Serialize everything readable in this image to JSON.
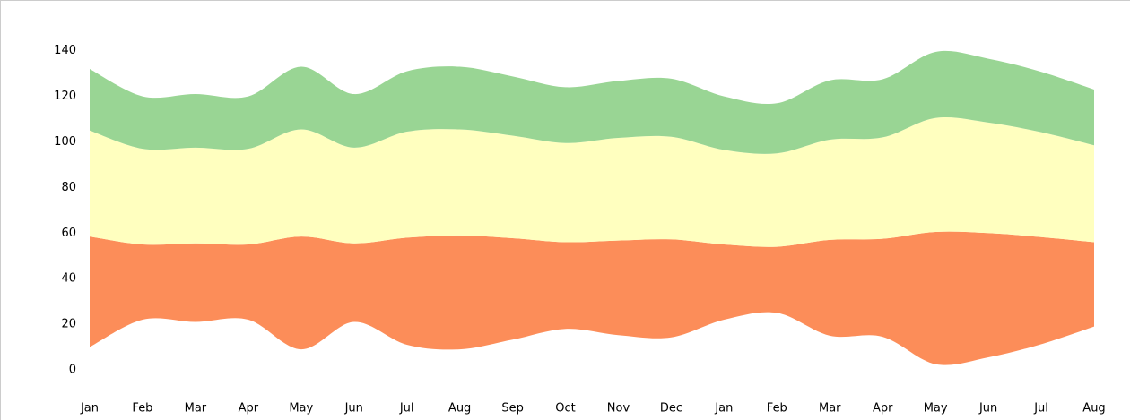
{
  "chart_data": {
    "type": "streamgraph",
    "offset": "silhouette",
    "categories": [
      "Jan",
      "Feb",
      "Mar",
      "Apr",
      "May",
      "Jun",
      "Jul",
      "Aug",
      "Sep",
      "Oct",
      "Nov",
      "Dec",
      "Jan",
      "Feb",
      "Mar",
      "Apr",
      "May",
      "Jun",
      "Jul",
      "Aug"
    ],
    "series": [
      {
        "color": "#fc8d59",
        "values": [
          48.5,
          33,
          34.5,
          33,
          49.5,
          34.5,
          47,
          50,
          44.5,
          38,
          41.5,
          43,
          33,
          29,
          42,
          43,
          58,
          54.5,
          47,
          37
        ]
      },
      {
        "color": "#ffffbf",
        "values": [
          46.5,
          42,
          42,
          42,
          47,
          42,
          46.5,
          46.5,
          45,
          43.5,
          45,
          45,
          41.5,
          41,
          44,
          44.5,
          50,
          48.5,
          46,
          42.5
        ]
      },
      {
        "color": "#99d594",
        "values": [
          27,
          23,
          23.5,
          23,
          27.5,
          23.5,
          26.5,
          27.5,
          26,
          24.5,
          25,
          25.5,
          23.5,
          22,
          26,
          25.5,
          29,
          28,
          26.5,
          24.5
        ]
      }
    ],
    "ylim": [
      0,
      142
    ],
    "yticks": [
      0,
      20,
      40,
      60,
      80,
      100,
      120,
      140
    ],
    "grid": false
  }
}
